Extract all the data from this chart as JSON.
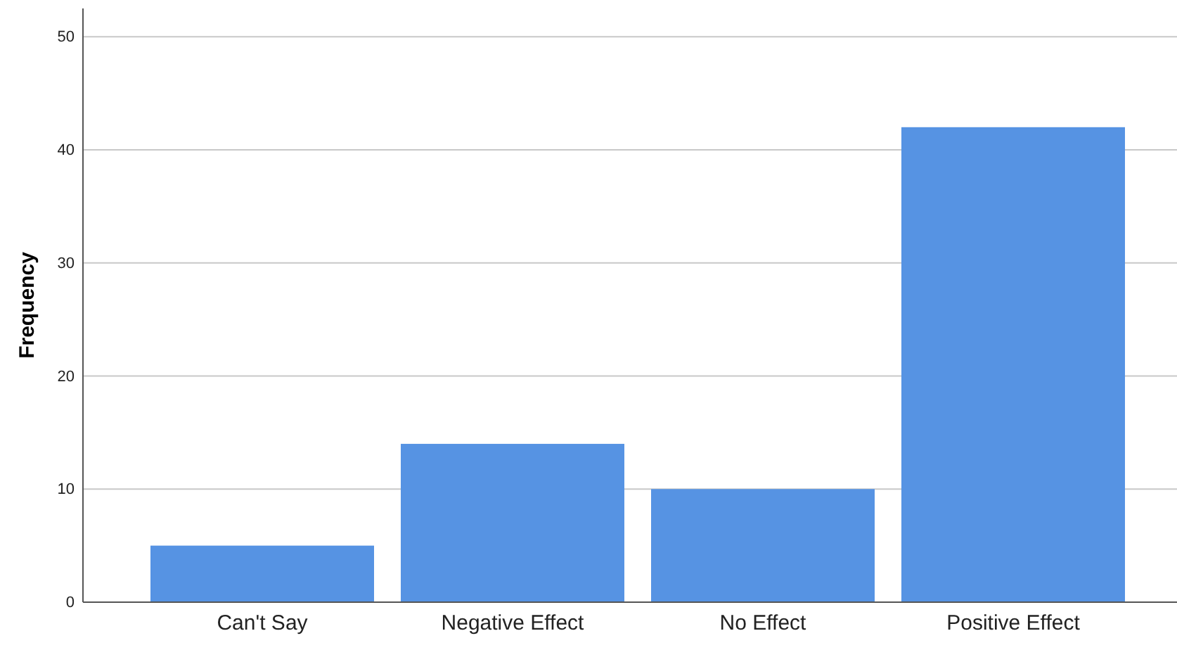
{
  "chart_data": {
    "type": "bar",
    "ylabel": "Frequency",
    "categories": [
      "Can't Say",
      "Negative Effect",
      "No Effect",
      "Positive Effect"
    ],
    "values": [
      5,
      14,
      10,
      42
    ],
    "color": "#5693e3",
    "ylim": [
      0,
      52.5
    ],
    "yticks": [
      0,
      10,
      20,
      30,
      40,
      50
    ],
    "grid": "y"
  }
}
